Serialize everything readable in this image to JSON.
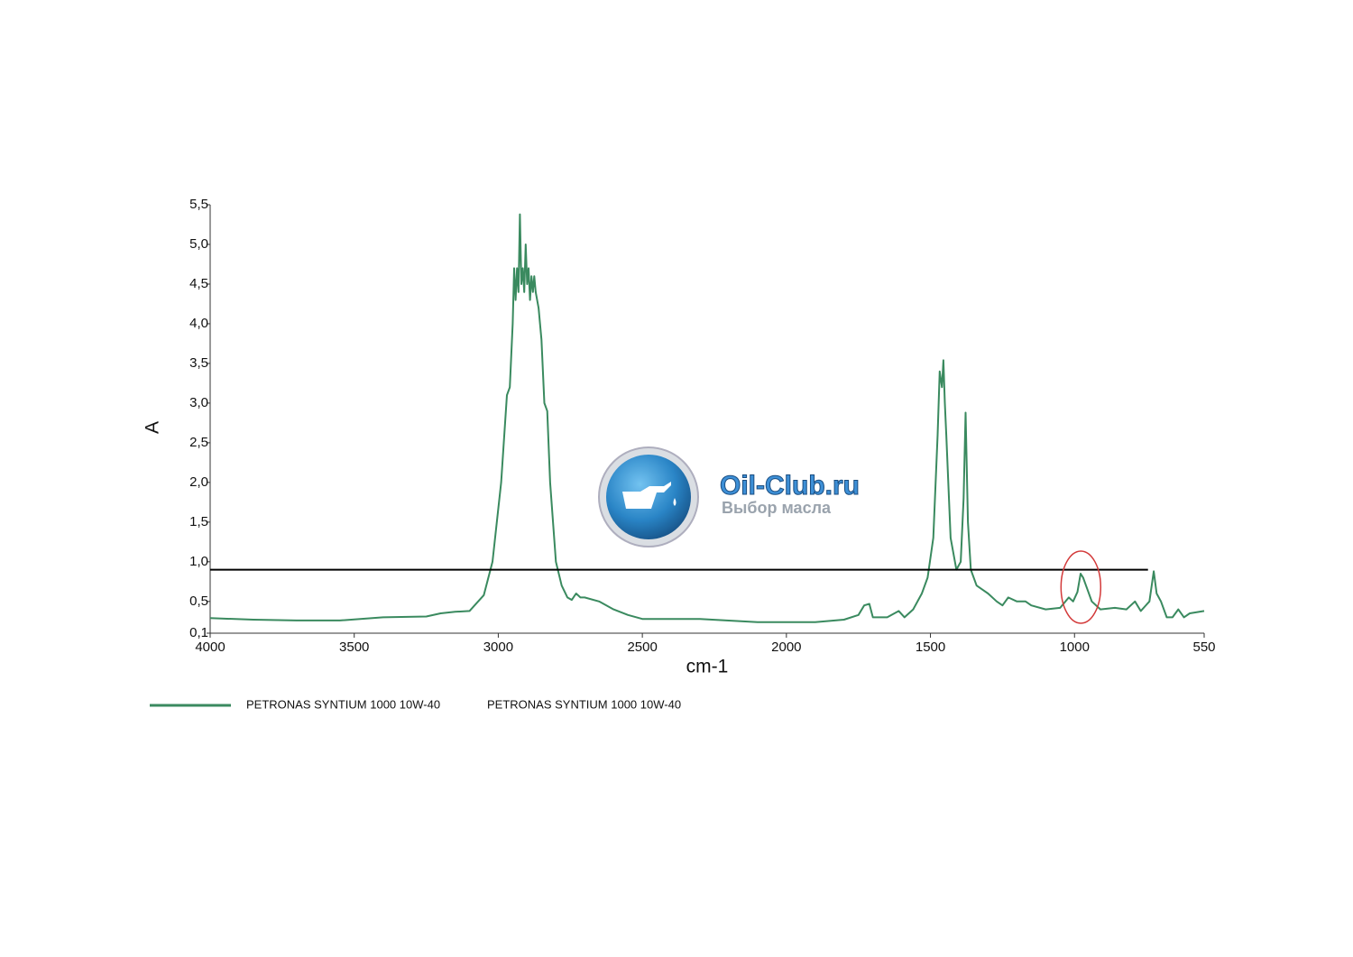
{
  "chart_data": {
    "type": "line",
    "y_label": "A",
    "x_label": "cm-1",
    "xlim": [
      4000,
      550
    ],
    "ylim": [
      0.1,
      5.5
    ],
    "xticks": [
      4000,
      3500,
      3000,
      2500,
      2000,
      1500,
      1000,
      550
    ],
    "yticks": [
      {
        "value": 0.1,
        "label": "0,1"
      },
      {
        "value": 0.5,
        "label": "0,5"
      },
      {
        "value": 1.0,
        "label": "1,0"
      },
      {
        "value": 1.5,
        "label": "1,5"
      },
      {
        "value": 2.0,
        "label": "2,0"
      },
      {
        "value": 2.5,
        "label": "2,5"
      },
      {
        "value": 3.0,
        "label": "3,0"
      },
      {
        "value": 3.5,
        "label": "3,5"
      },
      {
        "value": 4.0,
        "label": "4,0"
      },
      {
        "value": 4.5,
        "label": "4,5"
      },
      {
        "value": 5.0,
        "label": "5,0"
      },
      {
        "value": 5.5,
        "label": "5,5"
      }
    ],
    "x": [
      4000,
      3850,
      3700,
      3550,
      3400,
      3250,
      3200,
      3150,
      3100,
      3050,
      3020,
      2990,
      2970,
      2960,
      2950,
      2945,
      2940,
      2935,
      2930,
      2925,
      2920,
      2915,
      2910,
      2905,
      2900,
      2895,
      2890,
      2885,
      2880,
      2875,
      2870,
      2860,
      2850,
      2845,
      2840,
      2830,
      2820,
      2800,
      2780,
      2760,
      2745,
      2730,
      2715,
      2700,
      2650,
      2600,
      2550,
      2500,
      2300,
      2100,
      1900,
      1800,
      1750,
      1730,
      1712,
      1700,
      1650,
      1610,
      1590,
      1560,
      1530,
      1510,
      1490,
      1475,
      1468,
      1464,
      1460,
      1455,
      1450,
      1445,
      1430,
      1410,
      1395,
      1385,
      1378,
      1370,
      1360,
      1340,
      1320,
      1300,
      1270,
      1250,
      1230,
      1200,
      1170,
      1150,
      1100,
      1050,
      1020,
      1005,
      990,
      979,
      970,
      960,
      940,
      910,
      860,
      820,
      790,
      770,
      740,
      725,
      715,
      700,
      680,
      660,
      640,
      620,
      600,
      550
    ],
    "series": [
      {
        "name": "PETRONAS SYNTIUM 1000 10W-40",
        "color": "#3a8a5f",
        "values": [
          0.29,
          0.27,
          0.26,
          0.26,
          0.3,
          0.31,
          0.35,
          0.37,
          0.38,
          0.58,
          1.0,
          2.0,
          3.1,
          3.2,
          4.0,
          4.7,
          4.3,
          4.7,
          4.4,
          5.38,
          4.5,
          4.7,
          4.4,
          5.0,
          4.5,
          4.7,
          4.3,
          4.6,
          4.4,
          4.6,
          4.4,
          4.2,
          3.8,
          3.4,
          3.0,
          2.9,
          2.0,
          1.0,
          0.7,
          0.55,
          0.52,
          0.6,
          0.55,
          0.55,
          0.5,
          0.4,
          0.33,
          0.28,
          0.28,
          0.24,
          0.24,
          0.27,
          0.33,
          0.45,
          0.47,
          0.3,
          0.3,
          0.38,
          0.3,
          0.4,
          0.6,
          0.8,
          1.3,
          2.6,
          3.4,
          3.3,
          3.2,
          3.54,
          3.0,
          2.6,
          1.3,
          0.9,
          1.0,
          1.8,
          2.88,
          1.5,
          0.9,
          0.7,
          0.65,
          0.6,
          0.5,
          0.45,
          0.55,
          0.5,
          0.5,
          0.45,
          0.4,
          0.42,
          0.55,
          0.5,
          0.62,
          0.85,
          0.8,
          0.7,
          0.5,
          0.4,
          0.42,
          0.4,
          0.5,
          0.38,
          0.5,
          0.88,
          0.6,
          0.5,
          0.3,
          0.3,
          0.4,
          0.3,
          0.35,
          0.38
        ]
      }
    ],
    "reference_line": {
      "value": 0.9,
      "x": [
        4000,
        745
      ]
    },
    "highlight": {
      "x": 978,
      "y": 0.68,
      "color": "#d33a3a"
    },
    "legend_description": "PETRONAS SYNTIUM 1000 10W-40",
    "watermark": {
      "title": "Oil-Club.ru",
      "subtitle": "Выбор масла"
    }
  }
}
